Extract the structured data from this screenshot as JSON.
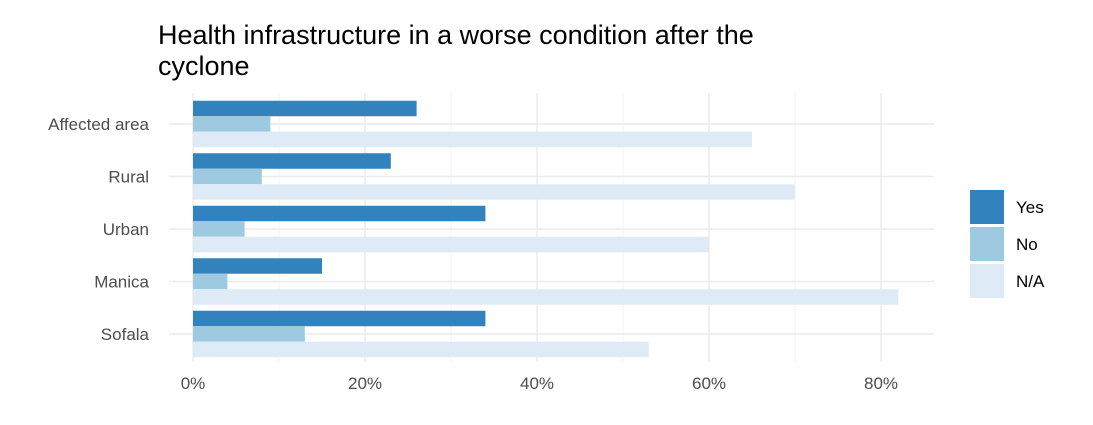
{
  "chart_data": {
    "type": "bar",
    "orientation": "horizontal",
    "title": "Health infrastructure in a worse condition after the cyclone",
    "categories": [
      "Affected area",
      "Rural",
      "Urban",
      "Manica",
      "Sofala"
    ],
    "series": [
      {
        "name": "Yes",
        "color": "#3182bd",
        "values": [
          26,
          23,
          34,
          15,
          34
        ]
      },
      {
        "name": "No",
        "color": "#9ecae1",
        "values": [
          9,
          8,
          6,
          4,
          13
        ]
      },
      {
        "name": "N/A",
        "color": "#deebf7",
        "values": [
          65,
          70,
          60,
          82,
          53
        ]
      }
    ],
    "x_ticks": [
      "0%",
      "20%",
      "40%",
      "60%",
      "80%"
    ],
    "x_tick_values": [
      0,
      20,
      40,
      60,
      80
    ],
    "xlim": [
      0,
      86
    ],
    "xlabel": "",
    "ylabel": "",
    "grid": true,
    "legend_position": "right"
  }
}
